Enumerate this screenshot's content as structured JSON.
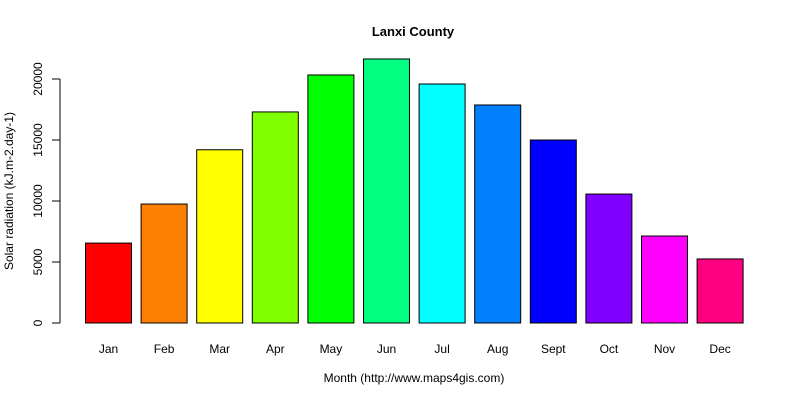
{
  "chart_data": {
    "type": "bar",
    "title": "Lanxi County",
    "xlabel": "Month (http://www.maps4gis.com)",
    "ylabel": "Solar radiation (kJ.m-2.day-1)",
    "categories": [
      "Jan",
      "Feb",
      "Mar",
      "Apr",
      "May",
      "Jun",
      "Jul",
      "Aug",
      "Sept",
      "Oct",
      "Nov",
      "Dec"
    ],
    "values": [
      6550,
      9750,
      14200,
      17300,
      20330,
      21640,
      19590,
      17870,
      15000,
      10570,
      7130,
      5250
    ],
    "colors": [
      "#FF0000",
      "#FF8000",
      "#FFFF00",
      "#80FF00",
      "#00FF00",
      "#00FF80",
      "#00FFFF",
      "#0080FF",
      "#0000FF",
      "#8000FF",
      "#FF00FF",
      "#FF0080"
    ],
    "yticks": [
      0,
      5000,
      10000,
      15000,
      20000
    ],
    "ylim": [
      0,
      20000
    ],
    "grid": false,
    "legend": null
  }
}
